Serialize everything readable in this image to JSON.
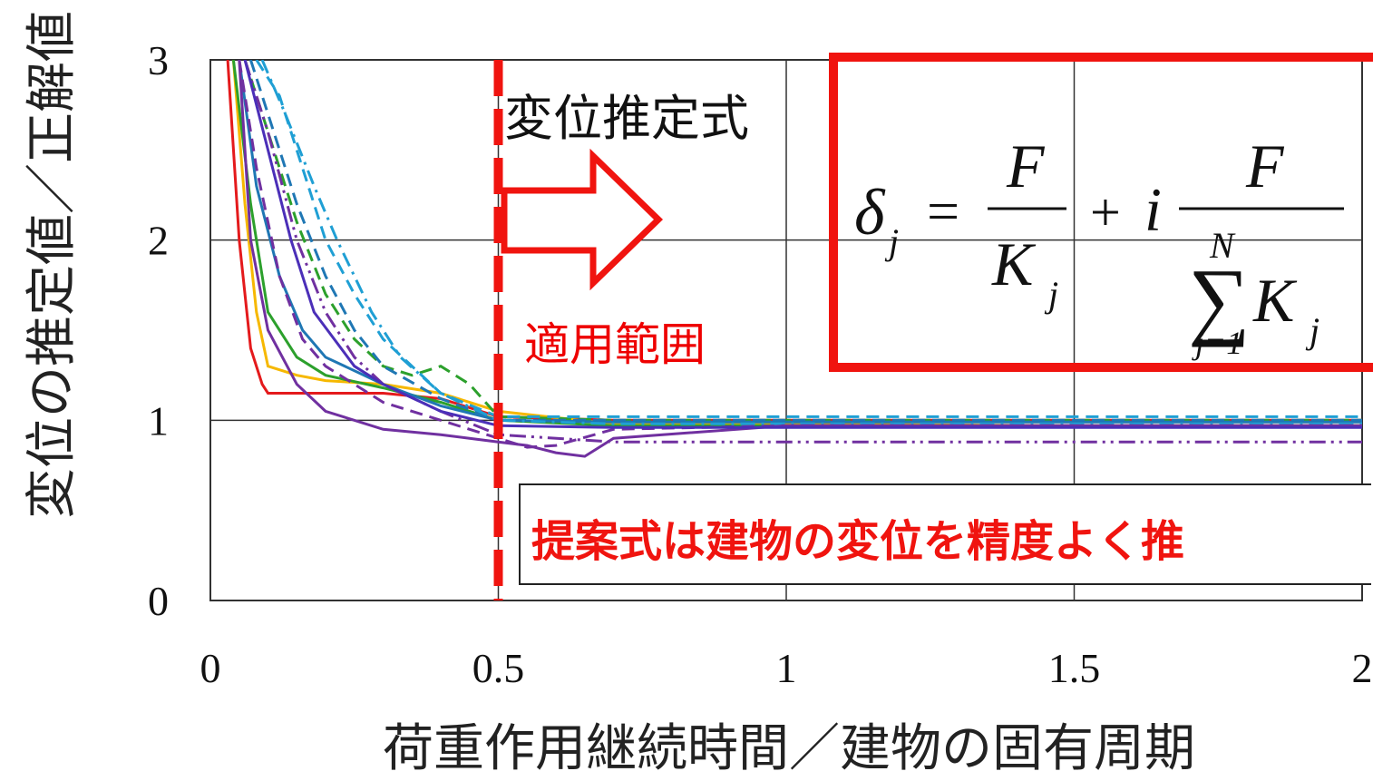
{
  "chart_data": {
    "type": "line",
    "xlabel": "荷重作用継続時間／建物の固有周期",
    "ylabel": "変位の推定値／正解値",
    "xlim": [
      0,
      2
    ],
    "ylim": [
      0,
      3
    ],
    "x_ticks": [
      "0",
      "0.5",
      "1",
      "1.5",
      "2"
    ],
    "y_ticks": [
      "0",
      "1",
      "2",
      "3"
    ],
    "grid": true,
    "applicability_limit_x": 0.5,
    "series": [
      {
        "color": "#e41a1c",
        "style": "solid",
        "x": [
          0.03,
          0.05,
          0.07,
          0.09,
          0.1,
          0.2,
          0.3,
          0.4,
          0.5,
          0.7,
          1.0,
          1.5,
          2.0
        ],
        "y": [
          3.0,
          2.0,
          1.4,
          1.2,
          1.15,
          1.15,
          1.15,
          1.12,
          1.02,
          1.0,
          1.0,
          1.0,
          1.0
        ]
      },
      {
        "color": "#f6b800",
        "style": "solid",
        "x": [
          0.04,
          0.06,
          0.08,
          0.1,
          0.15,
          0.2,
          0.3,
          0.4,
          0.5,
          0.7,
          1.0,
          1.5,
          2.0
        ],
        "y": [
          3.0,
          2.2,
          1.6,
          1.3,
          1.25,
          1.22,
          1.2,
          1.15,
          1.05,
          0.98,
          0.98,
          0.97,
          0.97
        ]
      },
      {
        "color": "#2ca02c",
        "style": "solid",
        "x": [
          0.04,
          0.07,
          0.1,
          0.15,
          0.2,
          0.3,
          0.4,
          0.5,
          0.7,
          1.0,
          1.5,
          2.0
        ],
        "y": [
          3.0,
          2.2,
          1.6,
          1.35,
          1.25,
          1.18,
          1.1,
          1.0,
          0.97,
          0.97,
          0.97,
          0.97
        ]
      },
      {
        "color": "#2ca02c",
        "style": "dash",
        "x": [
          0.06,
          0.1,
          0.15,
          0.2,
          0.25,
          0.3,
          0.35,
          0.4,
          0.45,
          0.5,
          0.7,
          1.0,
          1.5,
          2.0
        ],
        "y": [
          3.0,
          2.6,
          2.1,
          1.7,
          1.45,
          1.3,
          1.25,
          1.3,
          1.2,
          1.02,
          1.0,
          1.0,
          1.0,
          1.0
        ]
      },
      {
        "color": "#1f77b4",
        "style": "solid",
        "x": [
          0.05,
          0.08,
          0.12,
          0.16,
          0.2,
          0.3,
          0.4,
          0.5,
          0.7,
          1.0,
          1.5,
          2.0
        ],
        "y": [
          3.0,
          2.3,
          1.8,
          1.5,
          1.35,
          1.2,
          1.08,
          1.0,
          0.99,
          0.99,
          0.99,
          0.99
        ]
      },
      {
        "color": "#1f77b4",
        "style": "dash",
        "x": [
          0.07,
          0.1,
          0.15,
          0.2,
          0.25,
          0.3,
          0.4,
          0.5,
          0.7,
          1.0,
          1.5,
          2.0
        ],
        "y": [
          3.0,
          2.7,
          2.2,
          1.8,
          1.5,
          1.3,
          1.12,
          1.0,
          1.0,
          1.0,
          1.0,
          1.0
        ]
      },
      {
        "color": "#1f9fd4",
        "style": "dash",
        "x": [
          0.08,
          0.12,
          0.16,
          0.2,
          0.25,
          0.3,
          0.35,
          0.4,
          0.5,
          0.7,
          1.0,
          1.5,
          2.0
        ],
        "y": [
          3.0,
          2.8,
          2.4,
          2.0,
          1.7,
          1.45,
          1.3,
          1.15,
          1.02,
          1.02,
          1.02,
          1.02,
          1.02
        ]
      },
      {
        "color": "#1f9fd4",
        "style": "dashdot",
        "x": [
          0.09,
          0.13,
          0.18,
          0.22,
          0.28,
          0.33,
          0.4,
          0.5,
          0.7,
          1.0,
          1.5,
          2.0
        ],
        "y": [
          3.0,
          2.7,
          2.3,
          2.0,
          1.6,
          1.35,
          1.15,
          1.0,
          0.98,
          0.98,
          0.98,
          0.98
        ]
      },
      {
        "color": "#7030a0",
        "style": "solid",
        "x": [
          0.05,
          0.07,
          0.1,
          0.15,
          0.2,
          0.3,
          0.4,
          0.45,
          0.5,
          0.55,
          0.6,
          0.65,
          0.7,
          1.0,
          1.5,
          2.0
        ],
        "y": [
          3.0,
          2.0,
          1.5,
          1.2,
          1.05,
          0.95,
          0.92,
          0.9,
          0.88,
          0.86,
          0.82,
          0.8,
          0.9,
          0.97,
          0.97,
          0.97
        ]
      },
      {
        "color": "#7030a0",
        "style": "dash",
        "x": [
          0.05,
          0.08,
          0.12,
          0.16,
          0.2,
          0.3,
          0.4,
          0.5,
          0.55,
          0.6,
          0.7,
          1.0,
          1.5,
          2.0
        ],
        "y": [
          3.0,
          2.4,
          1.8,
          1.45,
          1.3,
          1.1,
          1.0,
          0.9,
          0.85,
          0.86,
          0.95,
          0.97,
          0.97,
          0.97
        ]
      },
      {
        "color": "#7030a0",
        "style": "dashdotdot",
        "x": [
          0.06,
          0.1,
          0.15,
          0.2,
          0.25,
          0.3,
          0.4,
          0.5,
          0.7,
          1.0,
          1.5,
          2.0
        ],
        "y": [
          3.0,
          2.6,
          2.0,
          1.6,
          1.35,
          1.2,
          1.05,
          0.92,
          0.88,
          0.88,
          0.88,
          0.88
        ]
      },
      {
        "color": "#4b2fb8",
        "style": "solid",
        "x": [
          0.06,
          0.1,
          0.14,
          0.18,
          0.25,
          0.3,
          0.4,
          0.5,
          0.7,
          1.0,
          1.5,
          2.0
        ],
        "y": [
          3.0,
          2.5,
          2.0,
          1.6,
          1.3,
          1.2,
          1.05,
          0.97,
          0.96,
          0.96,
          0.96,
          0.96
        ]
      }
    ],
    "annotations": {
      "formula_title": "変位推定式",
      "range_label": "適用範囲",
      "conclusion": "提案式は建物の変位を精度よく推"
    },
    "formula": {
      "lhs": "δ",
      "lhs_sub": "j",
      "eq": "=",
      "num1": "F",
      "den1": "K",
      "den1_sub": "j",
      "plus": "+",
      "coef": "i",
      "num2": "F",
      "sum": "∑",
      "sum_upper": "N",
      "sum_lower": "j=1",
      "den2": "K",
      "den2_sub": "j"
    },
    "colors": {
      "accent": "#f0140f"
    }
  }
}
